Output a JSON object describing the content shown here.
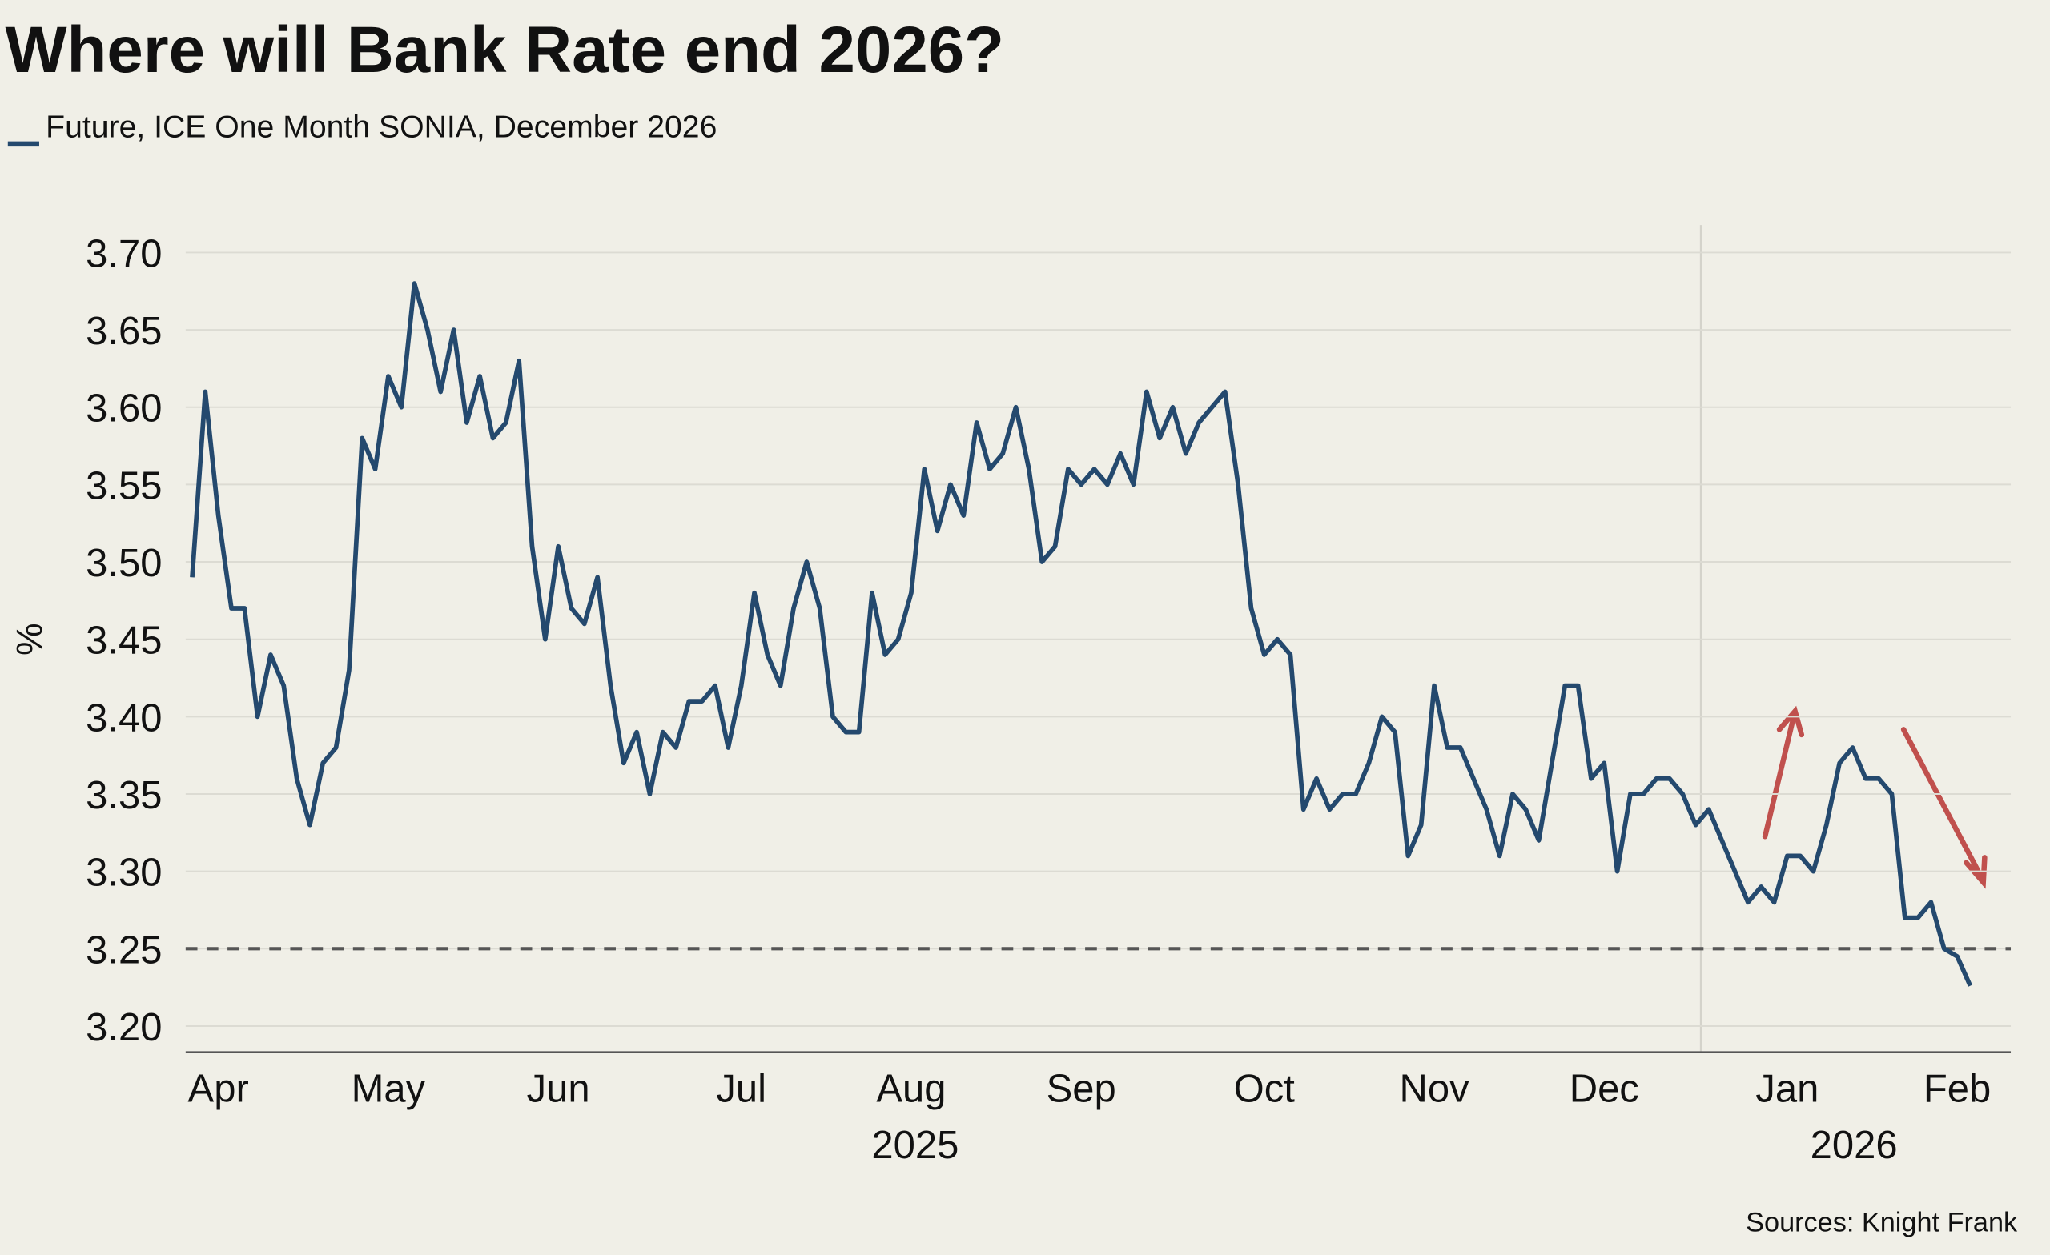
{
  "chart_data": {
    "type": "line",
    "title": "Where will Bank Rate end 2026?",
    "y_label": "%",
    "source": "Sources: Knight Frank",
    "x_year_labels": [
      "2025",
      "2026"
    ],
    "categories": [
      null,
      null,
      "Apr",
      null,
      null,
      null,
      null,
      null,
      null,
      null,
      null,
      null,
      null,
      null,
      null,
      "May",
      null,
      null,
      null,
      null,
      null,
      null,
      null,
      null,
      null,
      null,
      null,
      null,
      "Jun",
      null,
      null,
      null,
      null,
      null,
      null,
      null,
      null,
      null,
      null,
      null,
      null,
      null,
      "Jul",
      null,
      null,
      null,
      null,
      null,
      null,
      null,
      null,
      null,
      null,
      null,
      null,
      "Aug",
      null,
      null,
      null,
      null,
      null,
      null,
      null,
      null,
      null,
      null,
      null,
      null,
      "Sep",
      null,
      null,
      null,
      null,
      null,
      null,
      null,
      null,
      null,
      null,
      null,
      null,
      null,
      "Oct",
      null,
      null,
      null,
      null,
      null,
      null,
      null,
      null,
      null,
      null,
      null,
      null,
      "Nov",
      null,
      null,
      null,
      null,
      null,
      null,
      null,
      null,
      null,
      null,
      null,
      null,
      "Dec",
      null,
      null,
      null,
      null,
      null,
      null,
      null,
      null,
      null,
      null,
      null,
      null,
      null,
      "Jan",
      null,
      null,
      null,
      null,
      null,
      null,
      null,
      null,
      null,
      null,
      null,
      null,
      "Feb",
      null
    ],
    "series": [
      {
        "name": "Future, ICE One Month SONIA, December 2026",
        "color": "#24496e",
        "values": [
          3.49,
          3.61,
          3.53,
          3.47,
          3.47,
          3.4,
          3.44,
          3.42,
          3.36,
          3.33,
          3.37,
          3.38,
          3.43,
          3.58,
          3.56,
          3.62,
          3.6,
          3.68,
          3.65,
          3.61,
          3.65,
          3.59,
          3.62,
          3.58,
          3.59,
          3.63,
          3.51,
          3.45,
          3.51,
          3.47,
          3.46,
          3.49,
          3.42,
          3.37,
          3.39,
          3.35,
          3.39,
          3.38,
          3.41,
          3.41,
          3.42,
          3.38,
          3.42,
          3.48,
          3.44,
          3.42,
          3.47,
          3.5,
          3.47,
          3.4,
          3.39,
          3.39,
          3.48,
          3.44,
          3.45,
          3.48,
          3.56,
          3.52,
          3.55,
          3.53,
          3.59,
          3.56,
          3.57,
          3.6,
          3.56,
          3.5,
          3.51,
          3.56,
          3.55,
          3.56,
          3.55,
          3.57,
          3.55,
          3.61,
          3.58,
          3.6,
          3.57,
          3.59,
          3.6,
          3.61,
          3.55,
          3.47,
          3.44,
          3.45,
          3.44,
          3.34,
          3.36,
          3.34,
          3.35,
          3.35,
          3.37,
          3.4,
          3.39,
          3.31,
          3.33,
          3.42,
          3.38,
          3.38,
          3.36,
          3.34,
          3.31,
          3.35,
          3.34,
          3.32,
          3.37,
          3.42,
          3.42,
          3.36,
          3.37,
          3.3,
          3.35,
          3.35,
          3.36,
          3.36,
          3.35,
          3.33,
          3.34,
          3.32,
          3.3,
          3.28,
          3.29,
          3.28,
          3.31,
          3.31,
          3.3,
          3.33,
          3.37,
          3.38,
          3.36,
          3.36,
          3.35,
          3.27,
          3.27,
          3.28,
          3.25,
          3.245,
          3.226
        ]
      }
    ],
    "ylim": [
      3.18,
      3.72
    ],
    "yticks": [
      {
        "value": 3.2,
        "label": "3.20"
      },
      3.25,
      {
        "value": 3.3,
        "label": "3.30"
      },
      3.35,
      {
        "value": 3.4,
        "label": "3.40"
      },
      3.45,
      {
        "value": 3.5,
        "label": "3.50"
      },
      3.55,
      {
        "value": 3.6,
        "label": "3.60"
      },
      3.65,
      {
        "value": 3.7,
        "label": "3.70"
      }
    ],
    "reference_line": 3.25,
    "grid": true
  }
}
